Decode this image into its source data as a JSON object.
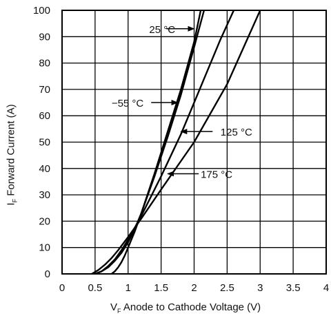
{
  "chart_data": {
    "type": "line",
    "xlabel": {
      "symbol": "V",
      "sub": "F",
      "text": " Anode to Cathode Voltage (V)"
    },
    "ylabel": {
      "symbol": "I",
      "sub": "F",
      "text": " Forward Current (A)"
    },
    "xlim": [
      0,
      4
    ],
    "ylim": [
      0,
      100
    ],
    "xticks": [
      "0",
      "0.5",
      "1",
      "1.5",
      "2",
      "2.5",
      "3",
      "3.5",
      "4"
    ],
    "yticks": [
      "0",
      "10",
      "20",
      "30",
      "40",
      "50",
      "60",
      "70",
      "80",
      "90",
      "100"
    ],
    "grid": true,
    "series": [
      {
        "name": "25 °C",
        "x": [
          0.5,
          0.6,
          0.7,
          0.8,
          0.9,
          1.0,
          1.1,
          1.2,
          1.4,
          1.6,
          1.8,
          2.0,
          2.15
        ],
        "y": [
          0,
          1,
          2.5,
          5,
          8,
          12,
          17,
          23,
          37,
          52,
          68,
          86,
          100
        ]
      },
      {
        "name": "−55 °C",
        "x": [
          0.75,
          0.8,
          0.85,
          0.9,
          0.95,
          1.0,
          1.1,
          1.2,
          1.4,
          1.6,
          1.8,
          2.0,
          2.1
        ],
        "y": [
          0,
          1,
          2.5,
          4.5,
          7,
          10,
          16,
          23,
          38,
          54,
          70,
          88,
          100
        ]
      },
      {
        "name": "125 °C",
        "x": [
          0.5,
          0.6,
          0.7,
          0.8,
          0.9,
          1.0,
          1.2,
          1.5,
          1.8,
          2.1,
          2.4,
          2.6
        ],
        "y": [
          0,
          1,
          3,
          5.5,
          9,
          13,
          22,
          37,
          53,
          71,
          89,
          100
        ]
      },
      {
        "name": "175 °C",
        "x": [
          0.45,
          0.55,
          0.65,
          0.75,
          0.85,
          1.0,
          1.2,
          1.5,
          2.0,
          2.5,
          3.0
        ],
        "y": [
          0,
          1.5,
          3.5,
          6,
          9,
          14,
          21,
          32,
          50,
          72,
          100
        ]
      }
    ],
    "annotations": [
      {
        "text": "25 °C",
        "target_x": 2.0,
        "target_y": 93.0,
        "label_x": 1.32,
        "label_y": 93.0,
        "arrow_from_x": 1.58
      },
      {
        "text": "−55 °C",
        "target_x": 1.75,
        "target_y": 65.0,
        "label_x": 0.75,
        "label_y": 65.0,
        "arrow_from_x": 1.35
      },
      {
        "text": "125 °C",
        "target_x": 1.8,
        "target_y": 54.0,
        "label_x": 2.4,
        "label_y": 54.0,
        "arrow_from_x": 2.28
      },
      {
        "text": "175 °C",
        "target_x": 1.6,
        "target_y": 38.0,
        "label_x": 2.1,
        "label_y": 38.0,
        "arrow_from_x": 2.07
      }
    ]
  }
}
